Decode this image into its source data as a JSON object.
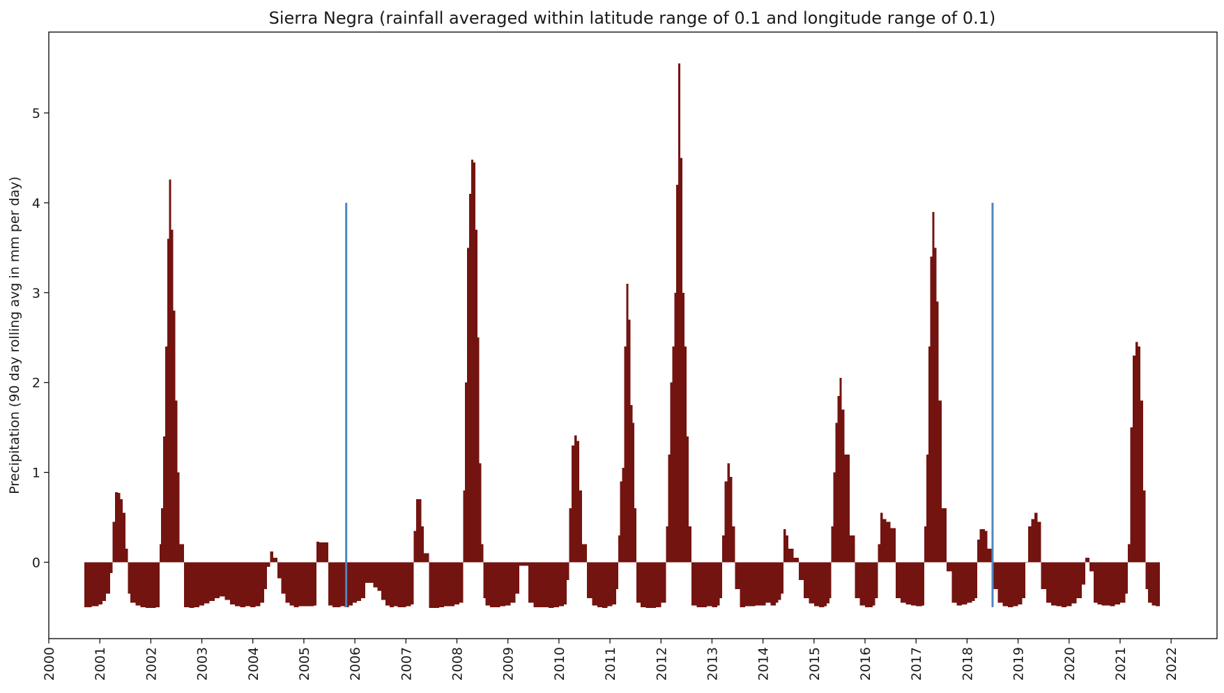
{
  "chart_data": {
    "type": "bar",
    "title": "Sierra Negra (rainfall averaged within latitude range of 0.1 and longitude range of 0.1)",
    "xlabel": "",
    "ylabel": "Precipitation (90 day rolling avg in mm per day)",
    "xlim": [
      2000.0,
      2022.9
    ],
    "ylim": [
      -0.85,
      5.9
    ],
    "x_ticks": [
      2000,
      2001,
      2002,
      2003,
      2004,
      2005,
      2006,
      2007,
      2008,
      2009,
      2010,
      2011,
      2012,
      2013,
      2014,
      2015,
      2016,
      2017,
      2018,
      2019,
      2020,
      2021,
      2022
    ],
    "x_tick_labels": [
      "2000",
      "2001",
      "2002",
      "2003",
      "2004",
      "2005",
      "2006",
      "2007",
      "2008",
      "2009",
      "2010",
      "2011",
      "2012",
      "2013",
      "2014",
      "2015",
      "2016",
      "2017",
      "2018",
      "2019",
      "2020",
      "2021",
      "2022"
    ],
    "y_ticks": [
      0,
      1,
      2,
      3,
      4,
      5
    ],
    "y_tick_labels": [
      "0",
      "1",
      "2",
      "3",
      "4",
      "5"
    ],
    "grid": false,
    "legend": "none",
    "bar_color": "#731410",
    "line_color": "#4f86c0",
    "series": [
      {
        "type": "bar",
        "x": [
          2000.7,
          2000.77,
          2000.84,
          2000.91,
          2000.98,
          2001.05,
          2001.12,
          2001.2,
          2001.25,
          2001.3,
          2001.35,
          2001.4,
          2001.45,
          2001.5,
          2001.55,
          2001.6,
          2001.7,
          2001.8,
          2001.9,
          2002.0,
          2002.1,
          2002.17,
          2002.2,
          2002.24,
          2002.28,
          2002.32,
          2002.36,
          2002.4,
          2002.44,
          2002.48,
          2002.52,
          2002.56,
          2002.65,
          2002.75,
          2002.85,
          2002.95,
          2003.05,
          2003.15,
          2003.25,
          2003.35,
          2003.45,
          2003.55,
          2003.65,
          2003.75,
          2003.85,
          2003.95,
          2004.05,
          2004.15,
          2004.22,
          2004.28,
          2004.34,
          2004.4,
          2004.48,
          2004.56,
          2004.64,
          2004.72,
          2004.8,
          2004.9,
          2005.0,
          2005.1,
          2005.2,
          2005.25,
          2005.3,
          2005.35,
          2005.4,
          2005.48,
          2005.56,
          2005.64,
          2005.72,
          2005.8,
          2005.88,
          2005.96,
          2006.04,
          2006.12,
          2006.2,
          2006.28,
          2006.36,
          2006.44,
          2006.52,
          2006.6,
          2006.68,
          2006.76,
          2006.84,
          2006.92,
          2007.0,
          2007.1,
          2007.15,
          2007.2,
          2007.25,
          2007.3,
          2007.35,
          2007.45,
          2007.55,
          2007.65,
          2007.75,
          2007.85,
          2007.95,
          2008.05,
          2008.12,
          2008.16,
          2008.2,
          2008.24,
          2008.28,
          2008.32,
          2008.36,
          2008.4,
          2008.44,
          2008.48,
          2008.52,
          2008.56,
          2008.65,
          2008.75,
          2008.85,
          2008.95,
          2009.05,
          2009.15,
          2009.22,
          2009.3,
          2009.4,
          2009.5,
          2009.6,
          2009.7,
          2009.8,
          2009.9,
          2010.0,
          2010.1,
          2010.15,
          2010.2,
          2010.25,
          2010.3,
          2010.35,
          2010.4,
          2010.45,
          2010.55,
          2010.65,
          2010.75,
          2010.85,
          2010.95,
          2011.05,
          2011.12,
          2011.16,
          2011.2,
          2011.24,
          2011.28,
          2011.32,
          2011.36,
          2011.4,
          2011.44,
          2011.48,
          2011.52,
          2011.6,
          2011.7,
          2011.8,
          2011.9,
          2012.0,
          2012.1,
          2012.14,
          2012.18,
          2012.22,
          2012.26,
          2012.3,
          2012.34,
          2012.38,
          2012.42,
          2012.46,
          2012.5,
          2012.54,
          2012.6,
          2012.7,
          2012.8,
          2012.9,
          2013.0,
          2013.1,
          2013.15,
          2013.2,
          2013.25,
          2013.3,
          2013.35,
          2013.4,
          2013.45,
          2013.55,
          2013.65,
          2013.75,
          2013.85,
          2013.95,
          2014.05,
          2014.15,
          2014.25,
          2014.3,
          2014.35,
          2014.4,
          2014.45,
          2014.5,
          2014.6,
          2014.7,
          2014.8,
          2014.9,
          2015.0,
          2015.1,
          2015.2,
          2015.25,
          2015.3,
          2015.34,
          2015.38,
          2015.42,
          2015.46,
          2015.5,
          2015.54,
          2015.6,
          2015.7,
          2015.8,
          2015.9,
          2016.0,
          2016.1,
          2016.15,
          2016.2,
          2016.25,
          2016.3,
          2016.35,
          2016.42,
          2016.5,
          2016.6,
          2016.7,
          2016.8,
          2016.9,
          2017.0,
          2017.07,
          2017.12,
          2017.16,
          2017.2,
          2017.24,
          2017.28,
          2017.32,
          2017.36,
          2017.4,
          2017.44,
          2017.5,
          2017.6,
          2017.7,
          2017.8,
          2017.9,
          2018.0,
          2018.1,
          2018.15,
          2018.2,
          2018.25,
          2018.3,
          2018.35,
          2018.4,
          2018.5,
          2018.6,
          2018.7,
          2018.8,
          2018.9,
          2019.0,
          2019.08,
          2019.14,
          2019.2,
          2019.26,
          2019.32,
          2019.38,
          2019.45,
          2019.55,
          2019.65,
          2019.75,
          2019.85,
          2019.95,
          2020.05,
          2020.15,
          2020.25,
          2020.32,
          2020.4,
          2020.48,
          2020.56,
          2020.64,
          2020.72,
          2020.8,
          2020.9,
          2021.0,
          2021.1,
          2021.15,
          2021.2,
          2021.25,
          2021.3,
          2021.35,
          2021.4,
          2021.45,
          2021.5,
          2021.55,
          2021.62,
          2021.7
        ],
        "values": [
          -0.5,
          -0.5,
          -0.49,
          -0.49,
          -0.47,
          -0.43,
          -0.35,
          -0.12,
          0.45,
          0.78,
          0.77,
          0.7,
          0.55,
          0.15,
          -0.35,
          -0.45,
          -0.48,
          -0.5,
          -0.51,
          -0.51,
          -0.5,
          0.2,
          0.6,
          1.4,
          2.4,
          3.6,
          4.26,
          3.7,
          2.8,
          1.8,
          1.0,
          0.2,
          -0.5,
          -0.51,
          -0.5,
          -0.48,
          -0.46,
          -0.43,
          -0.4,
          -0.38,
          -0.42,
          -0.47,
          -0.49,
          -0.5,
          -0.49,
          -0.5,
          -0.49,
          -0.45,
          -0.3,
          -0.05,
          0.12,
          0.05,
          -0.18,
          -0.35,
          -0.45,
          -0.48,
          -0.5,
          -0.49,
          -0.49,
          -0.49,
          -0.48,
          0.23,
          0.22,
          0.22,
          0.22,
          -0.48,
          -0.5,
          -0.5,
          -0.49,
          -0.5,
          -0.48,
          -0.45,
          -0.43,
          -0.4,
          -0.23,
          -0.23,
          -0.28,
          -0.32,
          -0.42,
          -0.48,
          -0.5,
          -0.49,
          -0.5,
          -0.5,
          -0.49,
          -0.47,
          0.35,
          0.7,
          0.7,
          0.4,
          0.1,
          -0.51,
          -0.51,
          -0.5,
          -0.49,
          -0.49,
          -0.47,
          -0.45,
          0.8,
          2.0,
          3.5,
          4.1,
          4.48,
          4.45,
          3.7,
          2.5,
          1.1,
          0.2,
          -0.4,
          -0.48,
          -0.5,
          -0.5,
          -0.49,
          -0.48,
          -0.45,
          -0.35,
          -0.04,
          -0.04,
          -0.45,
          -0.5,
          -0.5,
          -0.5,
          -0.51,
          -0.5,
          -0.49,
          -0.47,
          -0.2,
          0.6,
          1.3,
          1.41,
          1.35,
          0.8,
          0.2,
          -0.4,
          -0.48,
          -0.5,
          -0.51,
          -0.49,
          -0.47,
          -0.3,
          0.3,
          0.9,
          1.05,
          2.4,
          3.1,
          2.7,
          1.75,
          1.55,
          0.6,
          -0.45,
          -0.5,
          -0.51,
          -0.51,
          -0.5,
          -0.45,
          0.4,
          1.2,
          2.0,
          2.4,
          3.0,
          4.2,
          5.55,
          4.5,
          3.0,
          2.4,
          1.4,
          0.4,
          -0.48,
          -0.5,
          -0.5,
          -0.49,
          -0.5,
          -0.48,
          -0.4,
          0.3,
          0.9,
          1.1,
          0.95,
          0.4,
          -0.3,
          -0.5,
          -0.49,
          -0.49,
          -0.48,
          -0.48,
          -0.45,
          -0.48,
          -0.45,
          -0.42,
          -0.35,
          0.37,
          0.3,
          0.15,
          0.05,
          -0.2,
          -0.4,
          -0.46,
          -0.49,
          -0.5,
          -0.49,
          -0.46,
          -0.4,
          0.4,
          1.0,
          1.55,
          1.85,
          2.05,
          1.7,
          1.2,
          0.3,
          -0.4,
          -0.48,
          -0.5,
          -0.5,
          -0.48,
          -0.4,
          0.2,
          0.55,
          0.48,
          0.45,
          0.38,
          -0.4,
          -0.45,
          -0.47,
          -0.48,
          -0.49,
          -0.49,
          -0.48,
          0.4,
          1.2,
          2.4,
          3.4,
          3.9,
          3.5,
          2.9,
          1.8,
          0.6,
          -0.1,
          -0.45,
          -0.48,
          -0.47,
          -0.45,
          -0.43,
          -0.4,
          0.25,
          0.37,
          0.37,
          0.35,
          0.15,
          -0.3,
          -0.45,
          -0.49,
          -0.5,
          -0.49,
          -0.47,
          -0.4,
          0.0,
          0.4,
          0.48,
          0.55,
          0.45,
          -0.3,
          -0.45,
          -0.48,
          -0.49,
          -0.5,
          -0.49,
          -0.46,
          -0.4,
          -0.25,
          0.05,
          -0.1,
          -0.45,
          -0.47,
          -0.48,
          -0.48,
          -0.49,
          -0.47,
          -0.45,
          -0.35,
          0.2,
          1.5,
          2.3,
          2.45,
          2.4,
          1.8,
          0.8,
          -0.3,
          -0.45,
          -0.48,
          -0.49
        ]
      },
      {
        "type": "vline",
        "x": [
          2005.83,
          2018.5
        ],
        "ymin": -0.5,
        "ymax": 4.0
      }
    ]
  }
}
